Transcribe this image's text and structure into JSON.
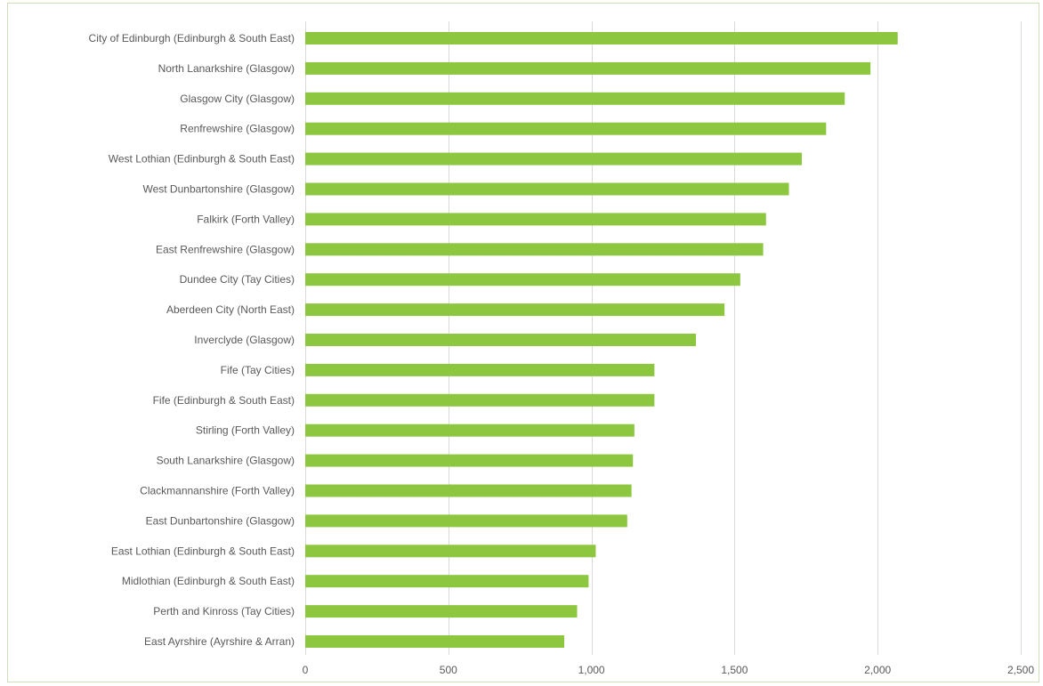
{
  "chart_data": {
    "type": "bar",
    "orientation": "horizontal",
    "title": "",
    "xlabel": "",
    "ylabel": "",
    "xlim": [
      0,
      2500
    ],
    "x_ticks": [
      0,
      500,
      1000,
      1500,
      2000,
      2500
    ],
    "x_tick_labels": [
      "0",
      "500",
      "1,000",
      "1,500",
      "2,000",
      "2,500"
    ],
    "grid": "vertical",
    "bar_color": "#8dc63f",
    "grid_color": "#d9d9d9",
    "label_color": "#595959",
    "categories": [
      "City of Edinburgh (Edinburgh & South East)",
      "North Lanarkshire (Glasgow)",
      "Glasgow City (Glasgow)",
      "Renfrewshire (Glasgow)",
      "West Lothian (Edinburgh & South East)",
      "West Dunbartonshire (Glasgow)",
      "Falkirk (Forth Valley)",
      "East Renfrewshire (Glasgow)",
      "Dundee City (Tay Cities)",
      "Aberdeen City (North East)",
      "Inverclyde (Glasgow)",
      "Fife (Tay Cities)",
      "Fife (Edinburgh & South East)",
      "Stirling (Forth Valley)",
      "South Lanarkshire (Glasgow)",
      "Clackmannanshire (Forth Valley)",
      "East Dunbartonshire (Glasgow)",
      "East Lothian (Edinburgh & South East)",
      "Midlothian (Edinburgh & South East)",
      "Perth and Kinross (Tay Cities)",
      "East Ayrshire (Ayrshire & Arran)"
    ],
    "values": [
      2070,
      1975,
      1885,
      1820,
      1735,
      1690,
      1610,
      1600,
      1520,
      1465,
      1365,
      1220,
      1220,
      1150,
      1145,
      1140,
      1125,
      1015,
      990,
      950,
      905
    ]
  }
}
